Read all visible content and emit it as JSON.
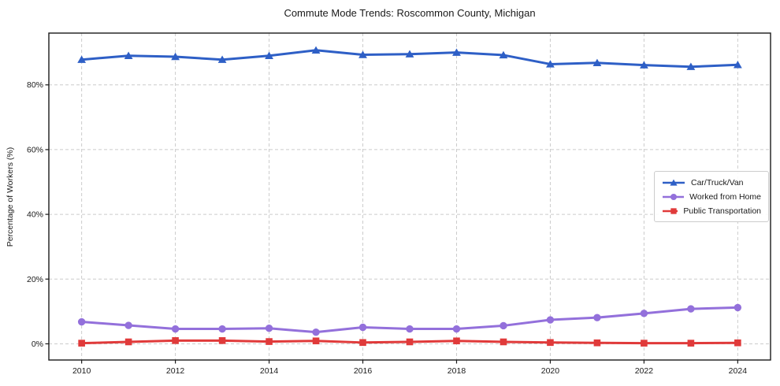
{
  "chart_data": {
    "type": "line",
    "title": "Commute Mode Trends: Roscommon County, Michigan",
    "xlabel": "",
    "ylabel": "Percentage of Workers (%)",
    "x": [
      2010,
      2011,
      2012,
      2013,
      2014,
      2015,
      2016,
      2017,
      2018,
      2019,
      2020,
      2021,
      2022,
      2023,
      2024
    ],
    "series": [
      {
        "name": "Car/Truck/Van",
        "color": "#2e5fc6",
        "marker": "triangle",
        "values": [
          87.8,
          89.0,
          88.7,
          87.8,
          89.0,
          90.7,
          89.3,
          89.5,
          90.0,
          89.2,
          86.4,
          86.8,
          86.1,
          85.6,
          86.2
        ]
      },
      {
        "name": "Worked from Home",
        "color": "#9370db",
        "marker": "circle",
        "values": [
          6.8,
          5.7,
          4.6,
          4.6,
          4.8,
          3.6,
          5.1,
          4.6,
          4.6,
          5.6,
          7.4,
          8.1,
          9.4,
          10.8,
          11.2
        ]
      },
      {
        "name": "Public Transportation",
        "color": "#e03a3a",
        "marker": "square",
        "values": [
          0.2,
          0.6,
          1.0,
          1.0,
          0.7,
          0.9,
          0.4,
          0.6,
          0.9,
          0.6,
          0.4,
          0.3,
          0.2,
          0.2,
          0.3
        ]
      }
    ],
    "xticks": [
      2010,
      2012,
      2014,
      2016,
      2018,
      2020,
      2022,
      2024
    ],
    "yticks": [
      0,
      20,
      40,
      60,
      80
    ],
    "ytick_labels": [
      "0%",
      "20%",
      "40%",
      "60%",
      "80%"
    ],
    "xlim": [
      2009.3,
      2024.7
    ],
    "ylim": [
      -5,
      96
    ],
    "grid": true,
    "grid_color": "#cccccc",
    "legend_position": "center-right"
  },
  "style": {
    "spine_color": "#1a1a1a",
    "background": "#ffffff"
  }
}
